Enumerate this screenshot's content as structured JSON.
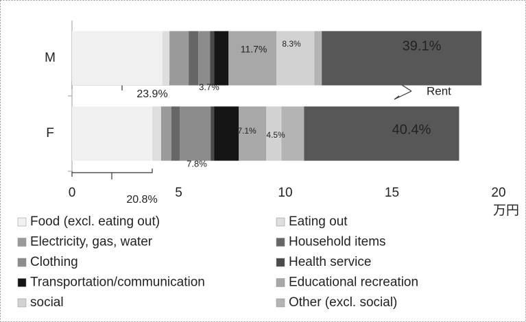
{
  "chart_data": {
    "type": "stacked_barh",
    "categories": [
      "M",
      "F"
    ],
    "xlabel": "万円",
    "xlim": [
      0,
      20
    ],
    "xticks": [
      0,
      5,
      10,
      15,
      20
    ],
    "series": [
      {
        "name": "Food (excl. eating out)",
        "color": "#f0f0f0",
        "values": [
          4.24,
          3.76
        ]
      },
      {
        "name": "Eating out",
        "color": "#dedede",
        "values": [
          0.33,
          0.42
        ]
      },
      {
        "name": "Electricity, gas, water",
        "color": "#9a9a9a",
        "values": [
          0.9,
          0.48
        ]
      },
      {
        "name": "Household items",
        "color": "#666666",
        "values": [
          0.45,
          0.39
        ]
      },
      {
        "name": "Clothing",
        "color": "#8c8c8c",
        "values": [
          0.55,
          1.45
        ]
      },
      {
        "name": "Health service",
        "color": "#4a4a4a",
        "values": [
          0.2,
          0.16
        ]
      },
      {
        "name": "Transportation/communication",
        "color": "#151515",
        "values": [
          0.67,
          1.16
        ]
      },
      {
        "name": "Educational recreation",
        "color": "#a8a8a8",
        "values": [
          2.25,
          1.29
        ]
      },
      {
        "name": "social",
        "color": "#d2d2d2",
        "values": [
          1.77,
          0.71
        ]
      },
      {
        "name": "Other (excl. social)",
        "color": "#b4b4b4",
        "values": [
          0.35,
          1.06
        ]
      },
      {
        "color": "#575757",
        "values": [
          7.49,
          7.27
        ]
      }
    ],
    "annotations": [
      "23.9%",
      "3.7%",
      "11.7%",
      "8.3%",
      "39.1%",
      "20.8%",
      "7.8%",
      "7.1%",
      "4.5%",
      "40.4%",
      "Rent"
    ]
  }
}
